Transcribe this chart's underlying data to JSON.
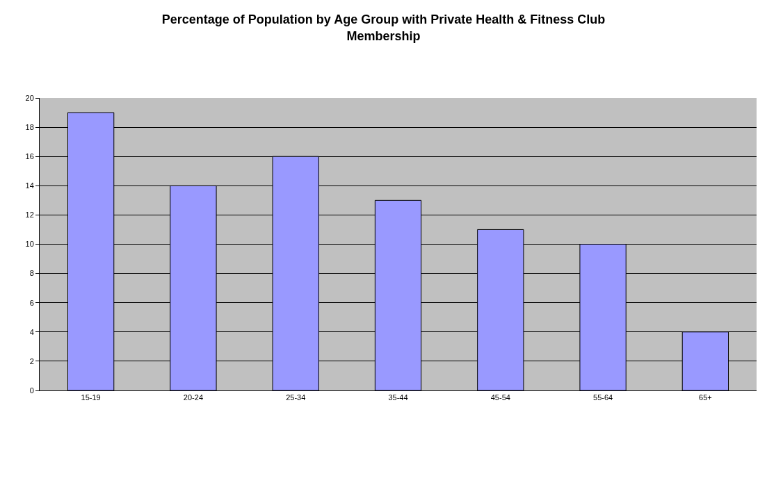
{
  "chart_data": {
    "type": "bar",
    "title": "Percentage of Population by Age Group with Private Health & Fitness Club Membership",
    "categories": [
      "15-19",
      "20-24",
      "25-34",
      "35-44",
      "45-54",
      "55-64",
      "65+"
    ],
    "values": [
      19,
      14,
      16,
      13,
      11,
      10,
      4
    ],
    "color": "#9999ff",
    "ylim": [
      0,
      20
    ],
    "yticks": [
      0,
      2,
      4,
      6,
      8,
      10,
      12,
      14,
      16,
      18,
      20
    ],
    "grid": "y"
  }
}
